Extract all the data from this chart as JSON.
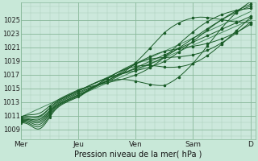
{
  "background_color": "#c8e8d8",
  "plot_bg_color": "#cce8dc",
  "grid_major_color": "#88b89a",
  "grid_minor_color": "#aaccb8",
  "line_color_dark": "#1a5c28",
  "line_color_light": "#3a8050",
  "xlabel": "Pression niveau de la mer( hPa )",
  "yticks": [
    1009,
    1011,
    1013,
    1015,
    1017,
    1019,
    1021,
    1023,
    1025
  ],
  "xtick_labels": [
    "Mer",
    "Jeu",
    "Ven",
    "Sam",
    "D"
  ],
  "xtick_positions": [
    0,
    24,
    48,
    72,
    96
  ],
  "ylim": [
    1007.5,
    1027.5
  ],
  "xlim": [
    0,
    98
  ]
}
